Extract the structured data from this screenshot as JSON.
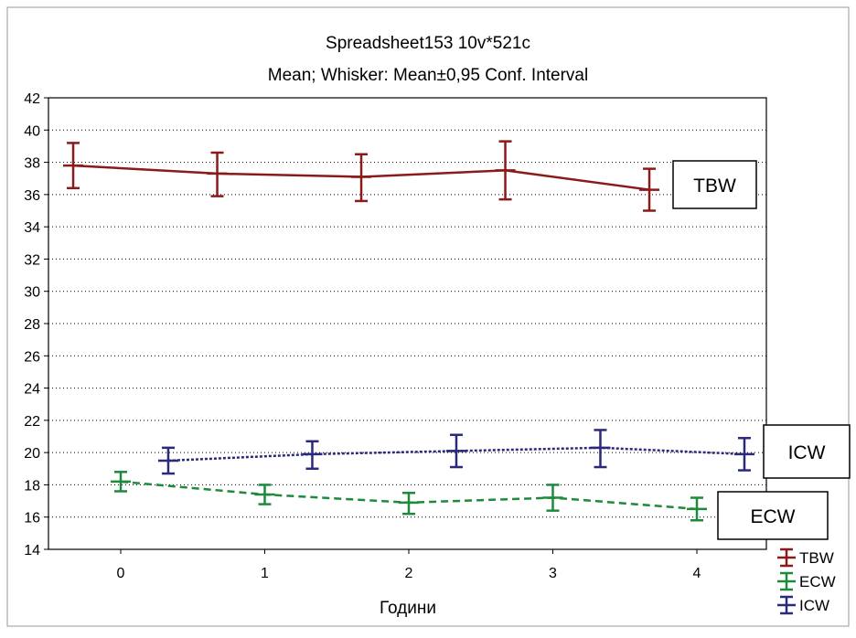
{
  "chart_data": {
    "type": "line",
    "title": "Spreadsheet153 10v*521c",
    "subtitle": "Mean; Whisker: Mean±0,95 Conf. Interval",
    "xlabel": "Години",
    "ylabel": "",
    "categories": [
      "0",
      "1",
      "2",
      "3",
      "4"
    ],
    "ylim": [
      14,
      42
    ],
    "yticks": [
      14,
      16,
      18,
      20,
      22,
      24,
      26,
      28,
      30,
      32,
      34,
      36,
      38,
      40,
      42
    ],
    "grid": true,
    "legend_position": "bottom-right",
    "series": [
      {
        "name": "TBW",
        "color": "#8b1a1a",
        "line_style": "solid",
        "x": [
          -0.33,
          0.67,
          1.67,
          2.67,
          3.67
        ],
        "values": [
          37.8,
          37.3,
          37.1,
          37.5,
          36.3
        ],
        "ci_low": [
          36.4,
          35.9,
          35.6,
          35.7,
          35.0
        ],
        "ci_high": [
          39.2,
          38.6,
          38.5,
          39.3,
          37.6
        ],
        "annotation": "TBW"
      },
      {
        "name": "ECW",
        "color": "#1e8a3c",
        "line_style": "dashed",
        "x": [
          0.0,
          1.0,
          2.0,
          3.0,
          4.0
        ],
        "values": [
          18.2,
          17.4,
          16.9,
          17.2,
          16.5
        ],
        "ci_low": [
          17.6,
          16.8,
          16.2,
          16.4,
          15.8
        ],
        "ci_high": [
          18.8,
          18.0,
          17.5,
          18.0,
          17.2
        ],
        "annotation": "ECW"
      },
      {
        "name": "ICW",
        "color": "#2b2a7a",
        "line_style": "dotted",
        "x": [
          0.33,
          1.33,
          2.33,
          3.33,
          4.33
        ],
        "values": [
          19.5,
          19.9,
          20.1,
          20.3,
          19.9
        ],
        "ci_low": [
          18.7,
          19.0,
          19.1,
          19.1,
          18.9
        ],
        "ci_high": [
          20.3,
          20.7,
          21.1,
          21.4,
          20.9
        ],
        "annotation": "ICW"
      }
    ]
  }
}
